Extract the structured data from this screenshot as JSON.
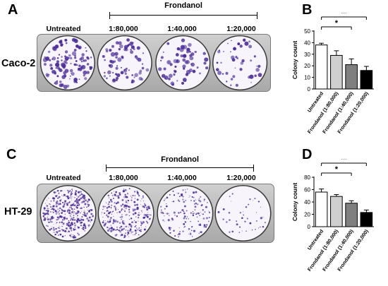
{
  "colors": {
    "crystal_violet": "#4b2c9a",
    "bar_fills": [
      "#ffffff",
      "#cfcfcf",
      "#7f7f7f",
      "#000000"
    ]
  },
  "panels": {
    "A": {
      "letter": "A",
      "cell_line": "Caco-2",
      "group_label": "Frondanol",
      "conditions": [
        "Untreated",
        "1:80,000",
        "1:40,000",
        "1:20,000"
      ]
    },
    "B": {
      "letter": "B"
    },
    "C": {
      "letter": "C",
      "cell_line": "HT-29",
      "group_label": "Frondanol",
      "conditions": [
        "Untreated",
        "1:80,000",
        "1:40,000",
        "1:20,000"
      ]
    },
    "D": {
      "letter": "D"
    }
  },
  "plate_images": {
    "A": {
      "colony_density": [
        0.85,
        0.55,
        0.45,
        0.3
      ],
      "colony_size": "large"
    },
    "C": {
      "colony_density": [
        1.0,
        0.7,
        0.35,
        0.1
      ],
      "colony_size": "small"
    }
  },
  "chart_data": [
    {
      "type": "bar",
      "panel": "B",
      "title": "",
      "categories": [
        "Untreated",
        "Frondanol (1:80,000)",
        "Frondanol (1:40,000)",
        "Frondanol (1:20,000)"
      ],
      "values": [
        38,
        29,
        21,
        16
      ],
      "errors": [
        1.5,
        4,
        5,
        3.5
      ],
      "xlabel": "",
      "ylabel": "Colony count",
      "ylim": [
        0,
        50
      ],
      "yticks": [
        "0",
        "10",
        "20",
        "30",
        "40",
        "50"
      ],
      "significance": [
        {
          "from": 0,
          "to": 2,
          "label": "*"
        },
        {
          "from": 0,
          "to": 3,
          "label": "**"
        }
      ],
      "grid": false
    },
    {
      "type": "bar",
      "panel": "D",
      "title": "",
      "categories": [
        "Untreated",
        "Frondanol (1:80,000)",
        "Frondanol (1:40,000)",
        "Frondanol (1:20,000)"
      ],
      "values": [
        56,
        49,
        38,
        23
      ],
      "errors": [
        5,
        3,
        4,
        4
      ],
      "xlabel": "",
      "ylabel": "Colony count",
      "ylim": [
        0,
        80
      ],
      "yticks": [
        "0",
        "20",
        "40",
        "60",
        "80"
      ],
      "significance": [
        {
          "from": 0,
          "to": 2,
          "label": "*"
        },
        {
          "from": 0,
          "to": 3,
          "label": "**"
        }
      ],
      "grid": false
    }
  ]
}
